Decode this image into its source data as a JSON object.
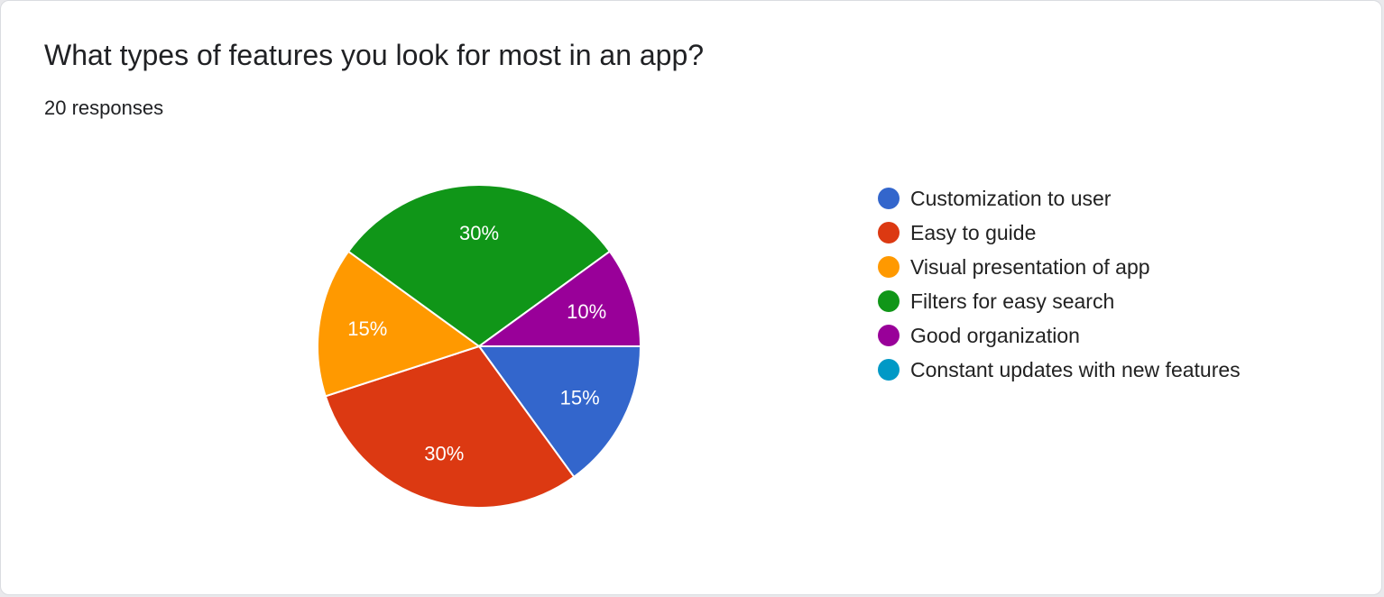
{
  "header": {
    "title": "What types of features you look for most in an app?",
    "responses": "20 responses"
  },
  "chart_data": {
    "type": "pie",
    "categories": [
      "Customization to user",
      "Easy to guide",
      "Visual presentation of app",
      "Filters for easy search",
      "Good organization",
      "Constant updates with new features"
    ],
    "values": [
      15,
      30,
      15,
      30,
      10,
      0
    ],
    "value_labels": [
      "15%",
      "30%",
      "15%",
      "30%",
      "10%",
      ""
    ],
    "colors": [
      "#3366cc",
      "#dc3912",
      "#ff9900",
      "#109618",
      "#990099",
      "#0099c6"
    ],
    "legend_position": "right"
  }
}
